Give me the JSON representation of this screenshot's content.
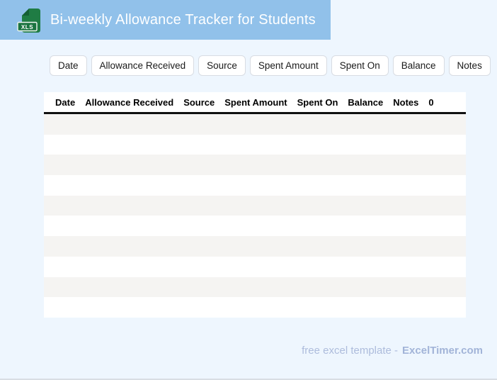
{
  "app": {
    "header": {
      "title": "Bi-weekly Allowance Tracker for Students",
      "icon_label": "XLS"
    },
    "filter_buttons": [
      "Date",
      "Allowance Received",
      "Source",
      "Spent Amount",
      "Spent On",
      "Balance",
      "Notes"
    ],
    "table": {
      "columns": [
        "Date",
        "Allowance Received",
        "Source",
        "Spent Amount",
        "Spent On",
        "Balance",
        "Notes",
        "0"
      ],
      "row_count": 10,
      "rows": []
    },
    "footer": {
      "text": "free excel template -",
      "brand": "ExcelTimer.com"
    },
    "colors": {
      "header_bg": "#91c1ea",
      "page_bg": "#eef6fe",
      "table_bg": "#ffffff",
      "row_alt_bg": "#f5f4f2",
      "divider": "#101010",
      "chip_border": "#d8dce3",
      "footer_text": "#adbcdc",
      "icon_green": "#1f7c44",
      "icon_green_dark": "#155f35"
    }
  }
}
